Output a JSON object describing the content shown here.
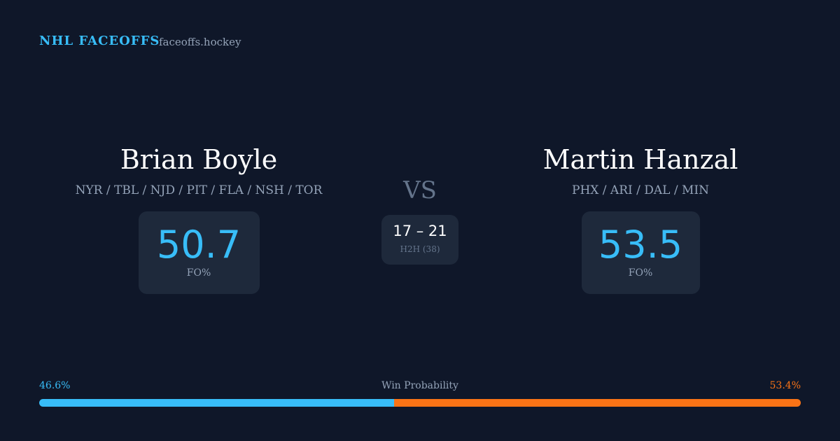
{
  "header": {
    "title": "NHL FACEOFFS",
    "site": "faceoffs.hockey"
  },
  "players": [
    {
      "name": "Brian Boyle",
      "teams": "NYR / TBL / NJD / PIT / FLA / NSH / TOR",
      "fo_pct": 50.7,
      "fo_label": "FO%"
    },
    {
      "name": "Martin Hanzal",
      "teams": "PHX / ARI / DAL / MIN",
      "fo_pct": 53.5,
      "fo_label": "FO%"
    }
  ],
  "vs": "VS",
  "h2h": {
    "score": "17 – 21",
    "label": "H2H (38)"
  },
  "win_probability": {
    "title": "Win Probability",
    "values": [
      {
        "value": 46.6,
        "label": "46.6%"
      },
      {
        "value": 53.4,
        "label": "53.4%"
      }
    ]
  }
}
